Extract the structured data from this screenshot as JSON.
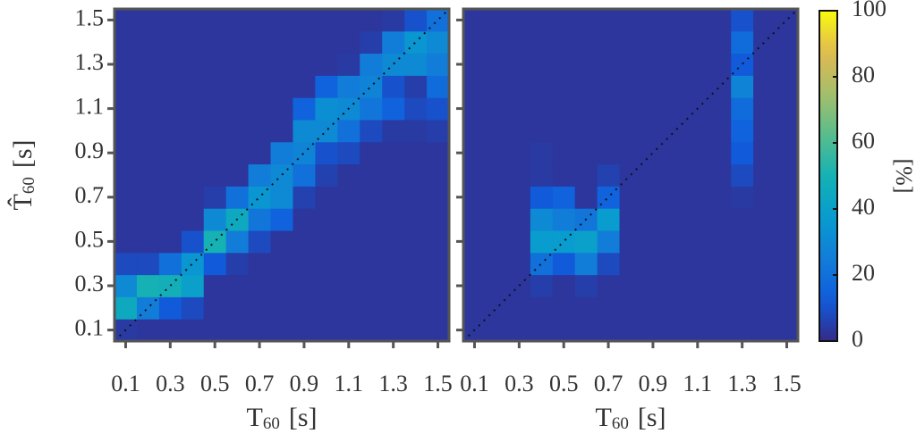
{
  "chart_data": [
    {
      "type": "heatmap",
      "colormap": "parula",
      "x": [
        0.1,
        0.2,
        0.3,
        0.4,
        0.5,
        0.6,
        0.7,
        0.8,
        0.9,
        1.0,
        1.1,
        1.2,
        1.3,
        1.4,
        1.5
      ],
      "y": [
        0.1,
        0.2,
        0.3,
        0.4,
        0.5,
        0.6,
        0.7,
        0.8,
        0.9,
        1.0,
        1.1,
        1.2,
        1.3,
        1.4,
        1.5
      ],
      "z": [
        [
          4,
          3,
          3,
          3,
          3,
          3,
          3,
          3,
          3,
          3,
          3,
          3,
          3,
          3,
          3
        ],
        [
          45,
          25,
          12,
          8,
          3,
          3,
          3,
          3,
          3,
          3,
          3,
          3,
          3,
          3,
          3
        ],
        [
          30,
          50,
          48,
          40,
          3,
          3,
          3,
          3,
          3,
          3,
          3,
          3,
          3,
          3,
          3
        ],
        [
          8,
          8,
          20,
          35,
          12,
          5,
          3,
          3,
          3,
          3,
          3,
          3,
          3,
          3,
          3
        ],
        [
          3,
          3,
          3,
          10,
          50,
          25,
          8,
          3,
          3,
          3,
          3,
          3,
          3,
          3,
          3
        ],
        [
          3,
          3,
          3,
          3,
          30,
          45,
          22,
          15,
          3,
          3,
          3,
          3,
          3,
          3,
          3
        ],
        [
          3,
          3,
          3,
          3,
          5,
          20,
          35,
          30,
          6,
          3,
          3,
          3,
          3,
          3,
          3
        ],
        [
          3,
          3,
          3,
          3,
          3,
          3,
          25,
          30,
          20,
          6,
          3,
          3,
          3,
          3,
          3
        ],
        [
          3,
          3,
          3,
          3,
          3,
          3,
          3,
          25,
          28,
          10,
          8,
          3,
          3,
          3,
          3
        ],
        [
          3,
          3,
          3,
          3,
          3,
          3,
          3,
          3,
          30,
          30,
          20,
          8,
          4,
          4,
          5
        ],
        [
          3,
          3,
          3,
          3,
          3,
          3,
          3,
          3,
          15,
          32,
          30,
          22,
          15,
          8,
          10
        ],
        [
          3,
          3,
          3,
          3,
          3,
          3,
          3,
          3,
          3,
          15,
          25,
          28,
          10,
          5,
          18
        ],
        [
          3,
          3,
          3,
          3,
          3,
          3,
          3,
          3,
          3,
          3,
          4,
          25,
          30,
          30,
          25
        ],
        [
          3,
          3,
          3,
          3,
          3,
          3,
          3,
          3,
          3,
          3,
          3,
          5,
          25,
          35,
          30
        ],
        [
          3,
          3,
          3,
          3,
          3,
          3,
          3,
          3,
          3,
          3,
          3,
          3,
          4,
          10,
          20
        ]
      ],
      "xlim": [
        0.05,
        1.55
      ],
      "ylim": [
        0.05,
        1.55
      ],
      "xticks": [
        0.1,
        0.3,
        0.5,
        0.7,
        0.9,
        1.1,
        1.3,
        1.5
      ],
      "yticks": [
        0.1,
        0.3,
        0.5,
        0.7,
        0.9,
        1.1,
        1.3,
        1.5
      ],
      "xlabel": [
        "T",
        "60",
        "[s]"
      ],
      "ylabel": [
        "T̂",
        "60",
        "[s]"
      ],
      "ytick_labels": true
    },
    {
      "type": "heatmap",
      "colormap": "parula",
      "x": [
        0.1,
        0.2,
        0.3,
        0.4,
        0.5,
        0.6,
        0.7,
        0.8,
        0.9,
        1.0,
        1.1,
        1.2,
        1.3,
        1.4,
        1.5
      ],
      "y": [
        0.1,
        0.2,
        0.3,
        0.4,
        0.5,
        0.6,
        0.7,
        0.8,
        0.9,
        1.0,
        1.1,
        1.2,
        1.3,
        1.4,
        1.5
      ],
      "z": [
        [
          3,
          3,
          3,
          3,
          3,
          3,
          3,
          3,
          3,
          3,
          3,
          3,
          3,
          3,
          3
        ],
        [
          3,
          3,
          3,
          3,
          3,
          3,
          3,
          3,
          3,
          3,
          3,
          3,
          3,
          3,
          3
        ],
        [
          3,
          3,
          3,
          5,
          3,
          5,
          3,
          3,
          3,
          3,
          3,
          3,
          3,
          3,
          3
        ],
        [
          3,
          3,
          3,
          20,
          12,
          25,
          8,
          3,
          3,
          3,
          3,
          3,
          3,
          3,
          3
        ],
        [
          3,
          3,
          3,
          38,
          38,
          40,
          25,
          3,
          3,
          3,
          3,
          3,
          3,
          3,
          3
        ],
        [
          3,
          3,
          3,
          30,
          25,
          22,
          38,
          3,
          3,
          3,
          3,
          3,
          3,
          3,
          3
        ],
        [
          3,
          3,
          3,
          12,
          15,
          3,
          15,
          3,
          3,
          3,
          3,
          3,
          4,
          3,
          3
        ],
        [
          3,
          3,
          3,
          4,
          3,
          3,
          6,
          3,
          3,
          3,
          3,
          3,
          8,
          3,
          3
        ],
        [
          3,
          3,
          3,
          4,
          3,
          3,
          3,
          3,
          3,
          3,
          3,
          3,
          12,
          3,
          3
        ],
        [
          3,
          3,
          3,
          3,
          3,
          3,
          3,
          3,
          3,
          3,
          3,
          3,
          15,
          3,
          3
        ],
        [
          3,
          3,
          3,
          3,
          3,
          3,
          3,
          3,
          3,
          3,
          3,
          3,
          18,
          3,
          3
        ],
        [
          3,
          3,
          3,
          3,
          3,
          3,
          3,
          3,
          3,
          3,
          3,
          3,
          28,
          3,
          3
        ],
        [
          3,
          3,
          3,
          3,
          3,
          3,
          3,
          3,
          3,
          3,
          3,
          3,
          12,
          3,
          3
        ],
        [
          3,
          3,
          3,
          3,
          3,
          3,
          3,
          3,
          3,
          3,
          3,
          3,
          18,
          3,
          3
        ],
        [
          3,
          3,
          3,
          3,
          3,
          3,
          3,
          3,
          3,
          3,
          3,
          3,
          10,
          3,
          3
        ]
      ],
      "xlim": [
        0.05,
        1.55
      ],
      "ylim": [
        0.05,
        1.55
      ],
      "xticks": [
        0.1,
        0.3,
        0.5,
        0.7,
        0.9,
        1.1,
        1.3,
        1.5
      ],
      "yticks": [
        0.1,
        0.3,
        0.5,
        0.7,
        0.9,
        1.1,
        1.3,
        1.5
      ],
      "xlabel": [
        "T",
        "60",
        "[s]"
      ],
      "ytick_labels": false
    }
  ],
  "colorbar": {
    "label": "[%]",
    "lim": [
      0,
      100
    ],
    "ticks": [
      0,
      20,
      40,
      60,
      80,
      100
    ]
  }
}
